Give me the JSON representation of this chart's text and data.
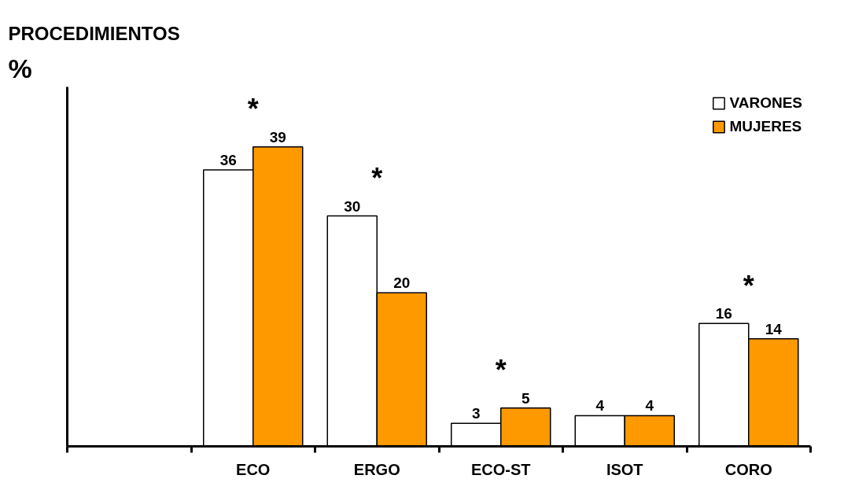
{
  "chart_data": {
    "type": "bar",
    "title": "PROCEDIMIENTOS",
    "ylabel": "%",
    "categories": [
      null,
      "ECO",
      "ERGO",
      "ECO-ST",
      "ISOT",
      "CORO"
    ],
    "series": [
      {
        "name": "VARONES",
        "color": "#ffffff",
        "values": [
          null,
          36,
          30,
          3,
          4,
          16
        ]
      },
      {
        "name": "MUJERES",
        "color": "#ff9900",
        "values": [
          null,
          39,
          20,
          5,
          4,
          14
        ]
      }
    ],
    "data_labels": true,
    "legend": "top right",
    "grid": false,
    "annotations": [
      {
        "text": "*",
        "x": "ECO",
        "y": 39
      },
      {
        "text": "*",
        "x": "ERGO",
        "y": 30
      },
      {
        "text": "*",
        "x": "ECO-ST",
        "y": 5
      },
      {
        "text": "*",
        "x": "CORO",
        "y": 16
      }
    ]
  }
}
